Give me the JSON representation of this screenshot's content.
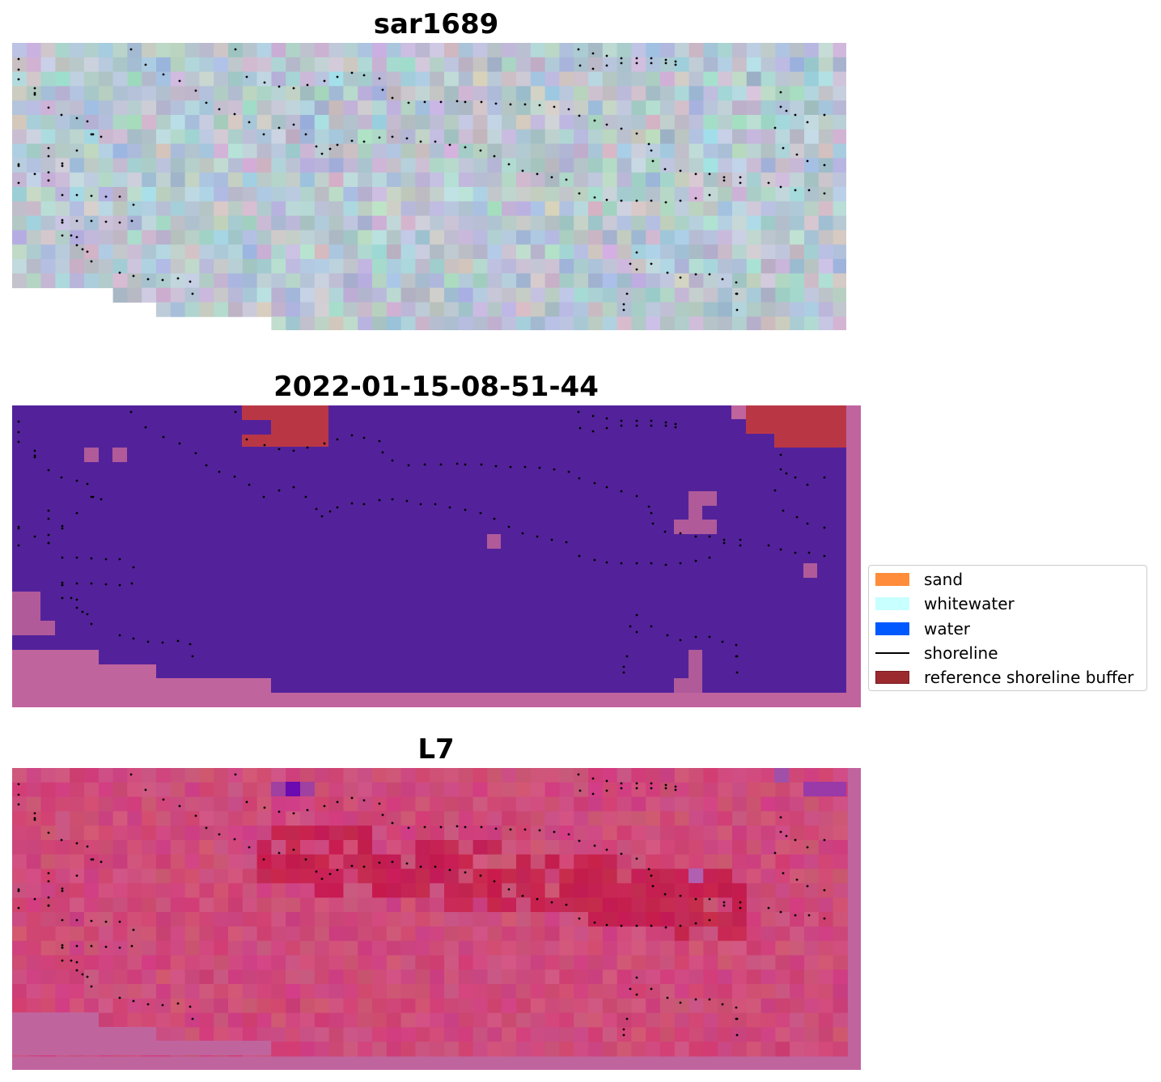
{
  "panels": [
    {
      "title": "sar1689",
      "kind": "sar"
    },
    {
      "title": "2022-01-15-08-51-44",
      "kind": "classification"
    },
    {
      "title": "L7",
      "kind": "ndwi"
    }
  ],
  "legend": {
    "items": [
      {
        "label": "sand",
        "color": "#ff8c3a",
        "type": "patch"
      },
      {
        "label": "whitewater",
        "color": "#c8ffff",
        "type": "patch"
      },
      {
        "label": "water",
        "color": "#0059ff",
        "type": "patch"
      },
      {
        "label": "shoreline",
        "color": "#000000",
        "type": "line"
      },
      {
        "label": "reference shoreline buffer",
        "color": "#9b2a2e",
        "type": "patch"
      }
    ]
  },
  "colors": {
    "classification_base": "#53229a",
    "nodata_pink": "#c0649e",
    "buffer_red": "#b93745",
    "l7_base": "#c94071",
    "l7_dark": "#c01a4a",
    "l7_purple": "#6a0ab0"
  }
}
